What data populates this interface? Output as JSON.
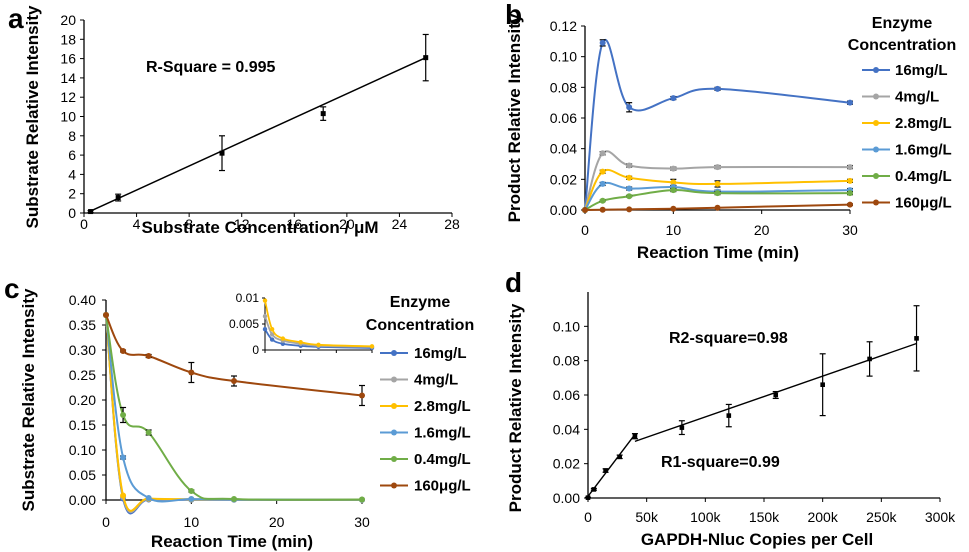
{
  "chart_data": [
    {
      "panel": "a",
      "type": "scatter",
      "xlabel": "Substrate Concentration / μM",
      "ylabel": "Substrate Relative Intensity",
      "xlim": [
        0,
        28
      ],
      "ylim": [
        0,
        20
      ],
      "xticks": [
        0,
        4,
        8,
        12,
        16,
        20,
        24,
        28
      ],
      "yticks": [
        0,
        2,
        4,
        6,
        8,
        10,
        12,
        14,
        16,
        18,
        20
      ],
      "annotations": [
        "R-Square = 0.995"
      ],
      "points": [
        {
          "x": 0.5,
          "y": 0.15,
          "err": 0.1
        },
        {
          "x": 2.6,
          "y": 1.6,
          "err": 0.35
        },
        {
          "x": 10.5,
          "y": 6.2,
          "err": 1.8
        },
        {
          "x": 18.2,
          "y": 10.3,
          "err": 0.7
        },
        {
          "x": 26.0,
          "y": 16.1,
          "err": 2.4
        }
      ],
      "fit": [
        [
          0.5,
          0.2
        ],
        [
          26.0,
          16.1
        ]
      ],
      "colors": {
        "marker": "#000000"
      }
    },
    {
      "panel": "b",
      "type": "line",
      "xlabel": "Reaction Time (min)",
      "ylabel": "Product Relative Intensity",
      "xlim": [
        0,
        30
      ],
      "ylim": [
        0,
        0.12
      ],
      "xticks": [
        0,
        10,
        20,
        30
      ],
      "yticks": [
        "0.00",
        "0.02",
        "0.04",
        "0.06",
        "0.08",
        "0.10",
        "0.12"
      ],
      "legend_title": [
        "Enzyme",
        "Concentration"
      ],
      "legend_position": "right",
      "x": [
        0,
        2,
        5,
        10,
        15,
        30
      ],
      "series": [
        {
          "name": "16mg/L",
          "color": "#4472C4",
          "values": [
            0,
            0.109,
            0.067,
            0.073,
            0.079,
            0.07
          ],
          "errors": [
            0,
            0.002,
            0.003,
            0.001,
            0.001,
            0.001
          ]
        },
        {
          "name": "4mg/L",
          "color": "#A5A5A5",
          "values": [
            0,
            0.037,
            0.029,
            0.027,
            0.028,
            0.028
          ],
          "errors": [
            0,
            0.001,
            0.001,
            0.001,
            0.001,
            0.001
          ]
        },
        {
          "name": "2.8mg/L",
          "color": "#FFC000",
          "values": [
            0,
            0.025,
            0.021,
            0.018,
            0.017,
            0.019
          ],
          "errors": [
            0,
            0.001,
            0.001,
            0.002,
            0.002,
            0.001
          ]
        },
        {
          "name": "1.6mg/L",
          "color": "#5B9BD5",
          "values": [
            0,
            0.017,
            0.014,
            0.015,
            0.012,
            0.013
          ],
          "errors": [
            0,
            0.001,
            0.001,
            0.001,
            0.001,
            0.001
          ]
        },
        {
          "name": "0.4mg/L",
          "color": "#70AD47",
          "values": [
            0,
            0.006,
            0.009,
            0.013,
            0.011,
            0.011
          ],
          "errors": [
            0,
            0.0005,
            0.0005,
            0.001,
            0.001,
            0.001
          ]
        },
        {
          "name": "160μg/L",
          "color": "#9E480E",
          "values": [
            0,
            0.0002,
            0.0004,
            0.0008,
            0.0015,
            0.0035
          ],
          "errors": [
            0,
            0,
            0,
            0,
            0,
            0.0005
          ]
        }
      ]
    },
    {
      "panel": "c",
      "type": "line",
      "xlabel": "Reaction Time (min)",
      "ylabel": "Substrate Relative Intensity",
      "xlim": [
        0,
        30
      ],
      "ylim": [
        0,
        0.4
      ],
      "xticks": [
        0,
        10,
        20,
        30
      ],
      "yticks": [
        "0.00",
        "0.05",
        "0.10",
        "0.15",
        "0.20",
        "0.25",
        "0.30",
        "0.35",
        "0.40"
      ],
      "legend_title": [
        "Enzyme",
        "Concentration"
      ],
      "legend_position": "right",
      "x": [
        0,
        2,
        5,
        10,
        15,
        30
      ],
      "series": [
        {
          "name": "16mg/L",
          "color": "#4472C4",
          "values": [
            0.37,
            0.003,
            0.001,
            0.0005,
            0.0004,
            0.0003
          ],
          "errors": [
            0,
            0,
            0,
            0,
            0,
            0
          ]
        },
        {
          "name": "4mg/L",
          "color": "#A5A5A5",
          "values": [
            0.37,
            0.006,
            0.002,
            0.001,
            0.0008,
            0.0005
          ],
          "errors": [
            0,
            0,
            0,
            0,
            0,
            0
          ]
        },
        {
          "name": "2.8mg/L",
          "color": "#FFC000",
          "values": [
            0.37,
            0.009,
            0.003,
            0.0015,
            0.001,
            0.0006
          ],
          "errors": [
            0,
            0,
            0,
            0,
            0,
            0
          ]
        },
        {
          "name": "1.6mg/L",
          "color": "#5B9BD5",
          "values": [
            0.37,
            0.085,
            0.004,
            0.002,
            0.001,
            0.0005
          ],
          "errors": [
            0,
            0.003,
            0,
            0,
            0,
            0
          ]
        },
        {
          "name": "0.4mg/L",
          "color": "#70AD47",
          "values": [
            0.37,
            0.17,
            0.135,
            0.018,
            0.002,
            0.001
          ],
          "errors": [
            0,
            0.015,
            0.005,
            0.002,
            0,
            0
          ]
        },
        {
          "name": "160μg/L",
          "color": "#9E480E",
          "values": [
            0.37,
            0.298,
            0.288,
            0.255,
            0.238,
            0.209
          ],
          "errors": [
            0,
            0.002,
            0.003,
            0.02,
            0.01,
            0.02
          ]
        }
      ],
      "inset": {
        "ylim": [
          0,
          0.01
        ],
        "yticks": [
          "0",
          "0.005",
          "0.01"
        ],
        "xlim": [
          0,
          30
        ],
        "x": [
          0,
          2,
          5,
          10,
          15,
          30
        ],
        "series": [
          {
            "name": "16mg/L",
            "color": "#4472C4",
            "values": [
              0.004,
              0.002,
              0.0012,
              0.0008,
              0.0006,
              0.0004
            ]
          },
          {
            "name": "4mg/L",
            "color": "#A5A5A5",
            "values": [
              0.0065,
              0.003,
              0.0018,
              0.0012,
              0.0008,
              0.0006
            ]
          },
          {
            "name": "2.8mg/L",
            "color": "#FFC000",
            "values": [
              0.0095,
              0.004,
              0.0022,
              0.0015,
              0.001,
              0.0007
            ]
          }
        ]
      }
    },
    {
      "panel": "d",
      "type": "scatter",
      "xlabel": "GAPDH-Nluc Copies per Cell",
      "ylabel": "Product Relative Intensity",
      "xlim": [
        0,
        300000
      ],
      "ylim": [
        0,
        0.12
      ],
      "xticks": [
        "0",
        "50k",
        "100k",
        "150k",
        "200k",
        "250k",
        "300k"
      ],
      "yticks": [
        "0.00",
        "0.02",
        "0.04",
        "0.06",
        "0.08",
        "0.10"
      ],
      "annotations": [
        "R2-square=0.98",
        "R1-square=0.99"
      ],
      "points": [
        {
          "x": 0,
          "y": 0.0002,
          "err": 0.0002
        },
        {
          "x": 5000,
          "y": 0.005,
          "err": 0.0005
        },
        {
          "x": 15000,
          "y": 0.016,
          "err": 0.001
        },
        {
          "x": 27000,
          "y": 0.024,
          "err": 0.001
        },
        {
          "x": 40000,
          "y": 0.036,
          "err": 0.0015
        },
        {
          "x": 80000,
          "y": 0.041,
          "err": 0.004
        },
        {
          "x": 120000,
          "y": 0.048,
          "err": 0.0065
        },
        {
          "x": 160000,
          "y": 0.06,
          "err": 0.002
        },
        {
          "x": 200000,
          "y": 0.066,
          "err": 0.018
        },
        {
          "x": 240000,
          "y": 0.081,
          "err": 0.01
        },
        {
          "x": 280000,
          "y": 0.093,
          "err": 0.019
        }
      ],
      "fits": [
        [
          [
            0,
            0.001
          ],
          [
            40000,
            0.037
          ]
        ],
        [
          [
            40000,
            0.033
          ],
          [
            280000,
            0.09
          ]
        ]
      ]
    }
  ]
}
